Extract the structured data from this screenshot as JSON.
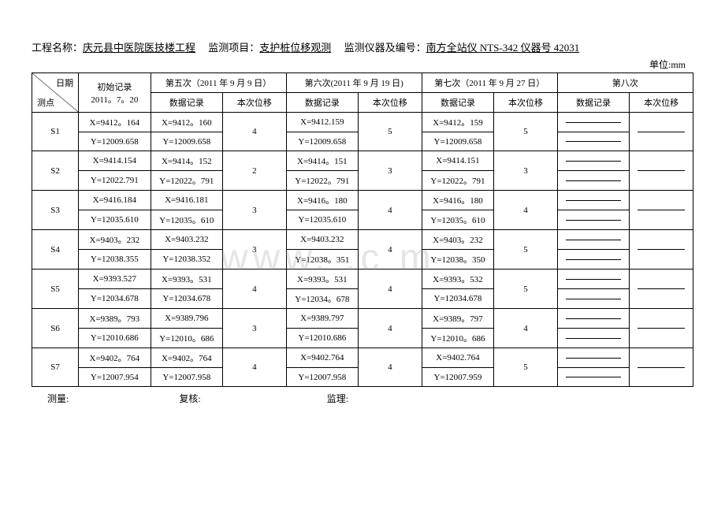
{
  "header": {
    "projectLabel": "工程名称：",
    "projectValue": "庆元县中医院医技楼工程",
    "itemLabel": "　监测项目：",
    "itemValue": "支护桩位移观测",
    "instrumentLabel": "　监测仪器及编号：",
    "instrumentValue": "南方全站仪 NTS-342 仪器号 42031",
    "unit": "单位:mm"
  },
  "cornerTop": "日期",
  "cornerBottom": "测点",
  "initialHeader": "初始记录\n2011。7。20",
  "cols": [
    {
      "title": "第五次（2011 年 9 月 9 日）",
      "sub1": "数据记录",
      "sub2": "本次位移"
    },
    {
      "title": "第六次(2011 年 9 月 19 日)",
      "sub1": "数据记录",
      "sub2": "本次位移"
    },
    {
      "title": "第七次（2011 年 9 月 27 日）",
      "sub1": "数据记录",
      "sub2": "本次位移"
    },
    {
      "title": "第八次",
      "sub1": "数据记录",
      "sub2": "本次位移"
    }
  ],
  "rows": [
    {
      "id": "S1",
      "x_init": "X=9412。164",
      "y_init": "Y=12009.658",
      "c5x": "X=9412。160",
      "c5y": "Y=12009.658",
      "d5": "4",
      "c6x": "X=9412.159",
      "c6y": "Y=12009.658",
      "d6": "5",
      "c7x": "X=9412。159",
      "c7y": "Y=12009.658",
      "d7": "5"
    },
    {
      "id": "S2",
      "x_init": "X=9414.154",
      "y_init": "Y=12022.791",
      "c5x": "X=9414。152",
      "c5y": "Y=12022。791",
      "d5": "2",
      "c6x": "X=9414。151",
      "c6y": "Y=12022。791",
      "d6": "3",
      "c7x": "X=9414.151",
      "c7y": "Y=12022。791",
      "d7": "3"
    },
    {
      "id": "S3",
      "x_init": "X=9416.184",
      "y_init": "Y=12035.610",
      "c5x": "X=9416.181",
      "c5y": "Y=12035。610",
      "d5": "3",
      "c6x": "X=9416。180",
      "c6y": "Y=12035.610",
      "d6": "4",
      "c7x": "X=9416。180",
      "c7y": "Y=12035。610",
      "d7": "4"
    },
    {
      "id": "S4",
      "x_init": "X=9403。232",
      "y_init": "Y=12038.355",
      "c5x": "X=9403.232",
      "c5y": "Y=12038.352",
      "d5": "3",
      "c6x": "X=9403.232",
      "c6y": "Y=12038。351",
      "d6": "4",
      "c7x": "X=9403。232",
      "c7y": "Y=12038。350",
      "d7": "5"
    },
    {
      "id": "S5",
      "x_init": "X=9393.527",
      "y_init": "Y=12034.678",
      "c5x": "X=9393。531",
      "c5y": "Y=12034.678",
      "d5": "4",
      "c6x": "X=9393。531",
      "c6y": "Y=12034。678",
      "d6": "4",
      "c7x": "X=9393。532",
      "c7y": "Y=12034.678",
      "d7": "5"
    },
    {
      "id": "S6",
      "x_init": "X=9389。793",
      "y_init": "Y=12010.686",
      "c5x": "X=9389.796",
      "c5y": "Y=12010。686",
      "d5": "3",
      "c6x": "X=9389.797",
      "c6y": "Y=12010.686",
      "d6": "4",
      "c7x": "X=9389。797",
      "c7y": "Y=12010。686",
      "d7": "4"
    },
    {
      "id": "S7",
      "x_init": "X=9402。764",
      "y_init": "Y=12007.954",
      "c5x": "X=9402。764",
      "c5y": "Y=12007.958",
      "d5": "4",
      "c6x": "X=9402.764",
      "c6y": "Y=12007.958",
      "d6": "4",
      "c7x": "X=9402.764",
      "c7y": "Y=12007.959",
      "d7": "5"
    }
  ],
  "footer": {
    "measure": "测量:",
    "review": "复核:",
    "supervise": "监理:"
  },
  "watermark": "www. .c m"
}
